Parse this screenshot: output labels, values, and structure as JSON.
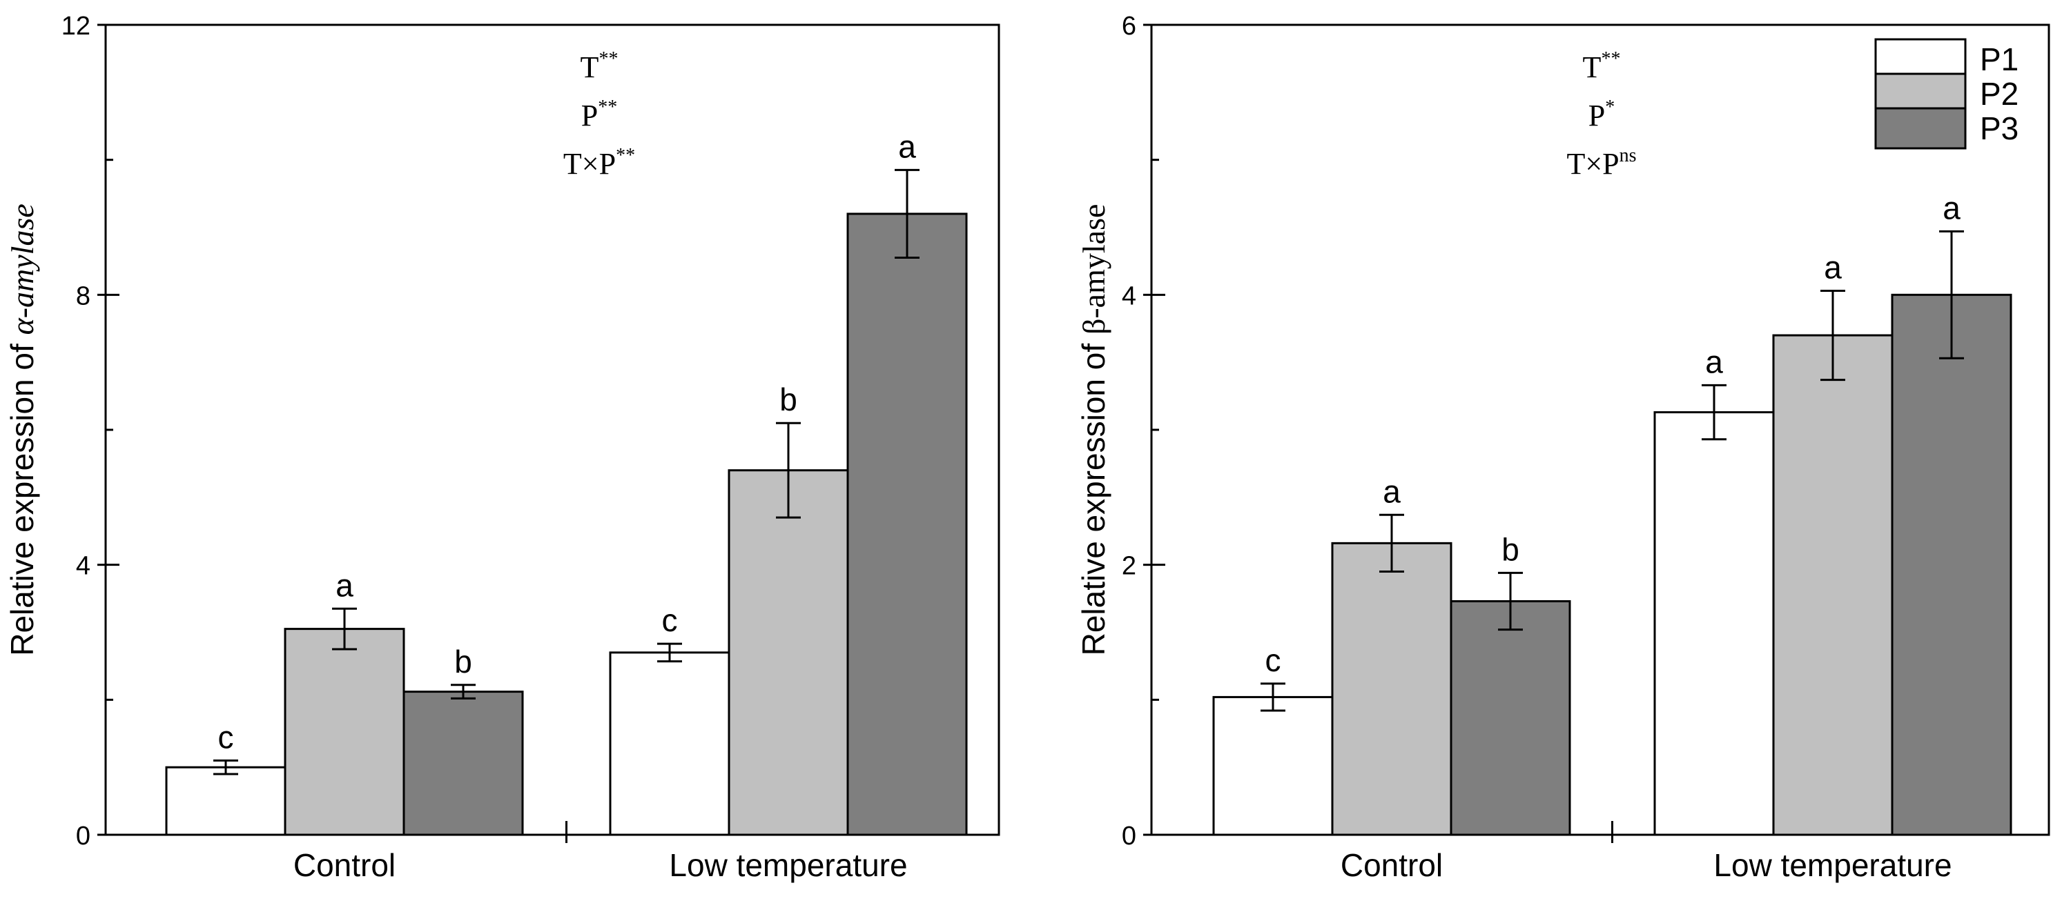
{
  "chart_data": [
    {
      "type": "bar",
      "categories": [
        "Control",
        "Low temperature"
      ],
      "series": [
        {
          "name": "P1",
          "color": "#ffffff",
          "values": [
            1.0,
            2.7
          ],
          "errors": [
            0.1,
            0.13
          ],
          "letters": [
            "c",
            "c"
          ]
        },
        {
          "name": "P2",
          "color": "#c0c0c0",
          "values": [
            3.05,
            5.4
          ],
          "errors": [
            0.3,
            0.7
          ],
          "letters": [
            "a",
            "b"
          ]
        },
        {
          "name": "P3",
          "color": "#7f7f7f",
          "values": [
            2.12,
            9.2
          ],
          "errors": [
            0.1,
            0.65
          ],
          "letters": [
            "b",
            "a"
          ]
        }
      ],
      "ylabel_prefix": "Relative expression of ",
      "ylabel_gene": "α-amylase",
      "ylim": [
        0,
        12
      ],
      "yticks": [
        0,
        4,
        8,
        12
      ],
      "annotations": [
        {
          "base": "T",
          "sup": "**"
        },
        {
          "base": "P",
          "sup": "**"
        },
        {
          "base": "T×P",
          "sup": "**"
        }
      ]
    },
    {
      "type": "bar",
      "categories": [
        "Control",
        "Low temperature"
      ],
      "series": [
        {
          "name": "P1",
          "color": "#ffffff",
          "values": [
            1.02,
            3.13
          ],
          "errors": [
            0.1,
            0.2
          ],
          "letters": [
            "c",
            "a"
          ]
        },
        {
          "name": "P2",
          "color": "#c0c0c0",
          "values": [
            2.16,
            3.7
          ],
          "errors": [
            0.21,
            0.33
          ],
          "letters": [
            "a",
            "a"
          ]
        },
        {
          "name": "P3",
          "color": "#7f7f7f",
          "values": [
            1.73,
            4.0
          ],
          "errors": [
            0.21,
            0.47
          ],
          "letters": [
            "b",
            "a"
          ]
        }
      ],
      "ylabel_prefix": "Relative expression of ",
      "ylabel_gene": "β-amylase",
      "ylim": [
        0,
        6
      ],
      "yticks": [
        0,
        2,
        4,
        6
      ],
      "annotations": [
        {
          "base": "T",
          "sup": "**"
        },
        {
          "base": "P",
          "sup": "*"
        },
        {
          "base": "T×P",
          "sup": "ns"
        }
      ],
      "legend": [
        "P1",
        "P2",
        "P3"
      ],
      "legend_position": "top-right"
    }
  ]
}
